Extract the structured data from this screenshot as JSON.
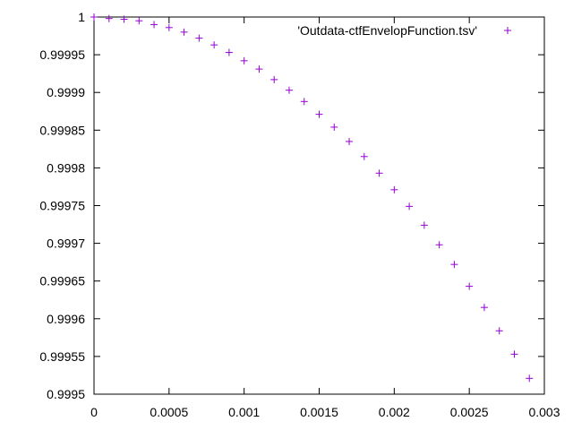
{
  "chart_data": {
    "type": "scatter",
    "title": "",
    "xlabel": "",
    "ylabel": "",
    "xlim": [
      0,
      0.003
    ],
    "ylim": [
      0.9995,
      1
    ],
    "grid": false,
    "legend": {
      "placement": "top-right",
      "marker": "+"
    },
    "x_ticks": [
      {
        "value": 0,
        "label": "0"
      },
      {
        "value": 0.0005,
        "label": "0.0005"
      },
      {
        "value": 0.001,
        "label": "0.001"
      },
      {
        "value": 0.0015,
        "label": "0.0015"
      },
      {
        "value": 0.002,
        "label": "0.002"
      },
      {
        "value": 0.0025,
        "label": "0.0025"
      },
      {
        "value": 0.003,
        "label": "0.003"
      }
    ],
    "y_ticks": [
      {
        "value": 0.9995,
        "label": "0.9995"
      },
      {
        "value": 0.99955,
        "label": "0.99955"
      },
      {
        "value": 0.9996,
        "label": "0.9996"
      },
      {
        "value": 0.99965,
        "label": "0.99965"
      },
      {
        "value": 0.9997,
        "label": "0.9997"
      },
      {
        "value": 0.99975,
        "label": "0.99975"
      },
      {
        "value": 0.9998,
        "label": "0.9998"
      },
      {
        "value": 0.99985,
        "label": "0.99985"
      },
      {
        "value": 0.9999,
        "label": "0.9999"
      },
      {
        "value": 0.99995,
        "label": "0.99995"
      },
      {
        "value": 1,
        "label": "1"
      }
    ],
    "series": [
      {
        "name": "'Outdata-ctfEnvelopFunction.tsv'",
        "color": "#9400d3",
        "marker": "+",
        "points": [
          {
            "x": 0.0,
            "y": 1.0
          },
          {
            "x": 0.0001,
            "y": 0.999998
          },
          {
            "x": 0.0002,
            "y": 0.999997
          },
          {
            "x": 0.0003,
            "y": 0.999995
          },
          {
            "x": 0.0004,
            "y": 0.99999
          },
          {
            "x": 0.0005,
            "y": 0.999986
          },
          {
            "x": 0.0006,
            "y": 0.99998
          },
          {
            "x": 0.0007,
            "y": 0.999972
          },
          {
            "x": 0.0008,
            "y": 0.999963
          },
          {
            "x": 0.0009,
            "y": 0.999953
          },
          {
            "x": 0.001,
            "y": 0.999942
          },
          {
            "x": 0.0011,
            "y": 0.999931
          },
          {
            "x": 0.0012,
            "y": 0.999917
          },
          {
            "x": 0.0013,
            "y": 0.999903
          },
          {
            "x": 0.0014,
            "y": 0.999888
          },
          {
            "x": 0.0015,
            "y": 0.999871
          },
          {
            "x": 0.0016,
            "y": 0.999854
          },
          {
            "x": 0.0017,
            "y": 0.999835
          },
          {
            "x": 0.0018,
            "y": 0.999815
          },
          {
            "x": 0.0019,
            "y": 0.999793
          },
          {
            "x": 0.002,
            "y": 0.999771
          },
          {
            "x": 0.0021,
            "y": 0.999749
          },
          {
            "x": 0.0022,
            "y": 0.999724
          },
          {
            "x": 0.0023,
            "y": 0.999698
          },
          {
            "x": 0.0024,
            "y": 0.999672
          },
          {
            "x": 0.0025,
            "y": 0.999643
          },
          {
            "x": 0.0026,
            "y": 0.999615
          },
          {
            "x": 0.0027,
            "y": 0.999584
          },
          {
            "x": 0.0028,
            "y": 0.999553
          },
          {
            "x": 0.0029,
            "y": 0.999521
          }
        ]
      }
    ]
  }
}
